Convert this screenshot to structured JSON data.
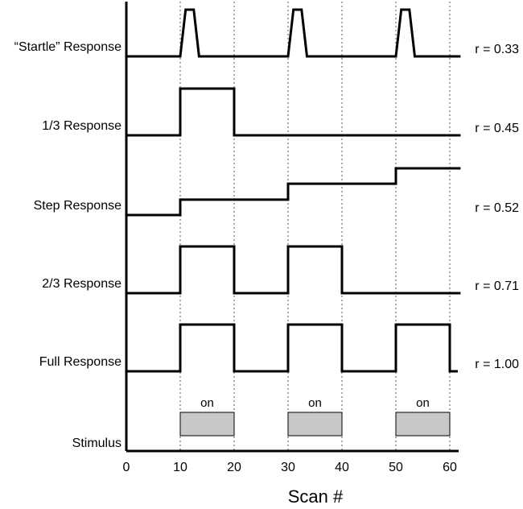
{
  "chart_data": {
    "type": "line",
    "xlabel": "Scan #",
    "x_ticks": [
      0,
      10,
      20,
      30,
      40,
      50,
      60
    ],
    "xlim": [
      0,
      62
    ],
    "grid": "dotted vertical lines at scans 10-60",
    "rows": [
      {
        "label": "“Startle” Response",
        "r_label": "r = 0.33",
        "points": [
          [
            0,
            0
          ],
          [
            10,
            0
          ],
          [
            11,
            1
          ],
          [
            12.5,
            1
          ],
          [
            13.5,
            0
          ],
          [
            30,
            0
          ],
          [
            31,
            1
          ],
          [
            32.5,
            1
          ],
          [
            33.5,
            0
          ],
          [
            50,
            0
          ],
          [
            51,
            1
          ],
          [
            52.5,
            1
          ],
          [
            53.5,
            0
          ],
          [
            62,
            0
          ]
        ]
      },
      {
        "label": "1/3 Response",
        "r_label": "r = 0.45",
        "points": [
          [
            0,
            0
          ],
          [
            10,
            0
          ],
          [
            10,
            1
          ],
          [
            20,
            1
          ],
          [
            20,
            0
          ],
          [
            62,
            0
          ]
        ]
      },
      {
        "label": "Step Response",
        "r_label": "r = 0.52",
        "points": [
          [
            0,
            0
          ],
          [
            10,
            0
          ],
          [
            10,
            0.33
          ],
          [
            30,
            0.33
          ],
          [
            30,
            0.67
          ],
          [
            50,
            0.67
          ],
          [
            50,
            1
          ],
          [
            62,
            1
          ]
        ]
      },
      {
        "label": "2/3 Response",
        "r_label": "r = 0.71",
        "points": [
          [
            0,
            0
          ],
          [
            10,
            0
          ],
          [
            10,
            1
          ],
          [
            20,
            1
          ],
          [
            20,
            0
          ],
          [
            30,
            0
          ],
          [
            30,
            1
          ],
          [
            40,
            1
          ],
          [
            40,
            0
          ],
          [
            62,
            0
          ]
        ]
      },
      {
        "label": "Full Response",
        "r_label": "r = 1.00",
        "points": [
          [
            0,
            0
          ],
          [
            10,
            0
          ],
          [
            10,
            1
          ],
          [
            20,
            1
          ],
          [
            20,
            0
          ],
          [
            30,
            0
          ],
          [
            30,
            1
          ],
          [
            40,
            1
          ],
          [
            40,
            0
          ],
          [
            50,
            0
          ],
          [
            50,
            1
          ],
          [
            60,
            1
          ],
          [
            60,
            0
          ],
          [
            61.5,
            0
          ]
        ]
      }
    ],
    "stimulus": {
      "label": "Stimulus",
      "block_label": "on",
      "blocks": [
        [
          10,
          20
        ],
        [
          30,
          40
        ],
        [
          50,
          60
        ]
      ],
      "block_color": "#c8c8c8"
    },
    "line_color": "#000000"
  }
}
